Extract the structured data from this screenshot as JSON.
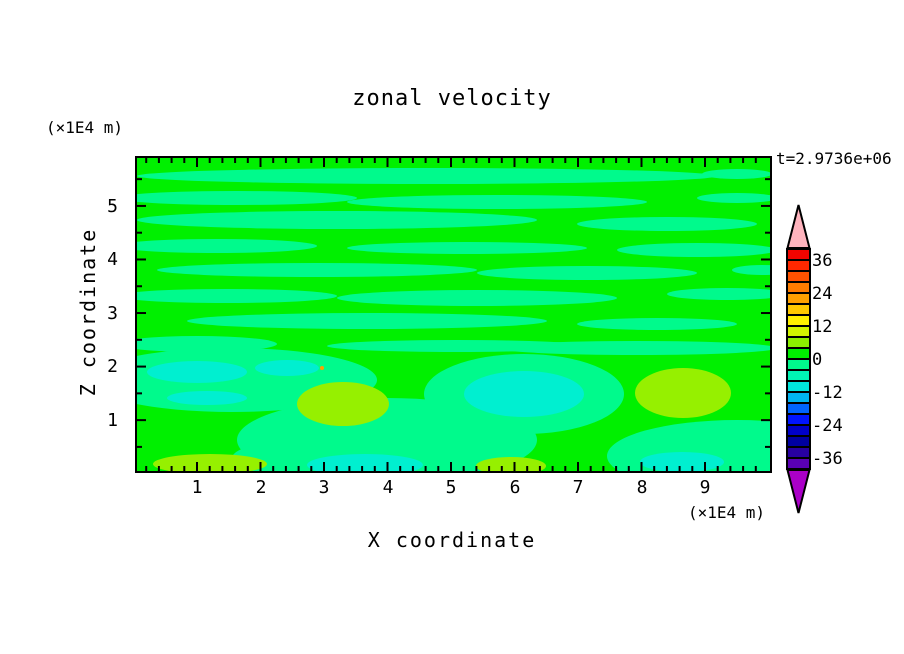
{
  "title": "zonal velocity",
  "timestamp": "t=2.9736e+06",
  "axes": {
    "x": {
      "label": "X coordinate",
      "units": "(×1E4 m)",
      "tick_labels": [
        "1",
        "2",
        "3",
        "4",
        "5",
        "6",
        "7",
        "8",
        "9"
      ],
      "major_ticks": [
        1,
        2,
        3,
        4,
        5,
        6,
        7,
        8,
        9
      ],
      "minor_step": 0.2,
      "range": [
        0,
        10
      ]
    },
    "y": {
      "label": "Z coordinate",
      "units": "(×1E4 m)",
      "tick_labels": [
        "5",
        "4",
        "3",
        "2",
        "1"
      ],
      "major_ticks": [
        1,
        2,
        3,
        4,
        5
      ],
      "minor_step": 0.5,
      "range": [
        0,
        5.9
      ]
    }
  },
  "colorbar": {
    "labels": [
      "36",
      "24",
      "12",
      "0",
      "-12",
      "-24",
      "-36"
    ],
    "range": [
      -40,
      40
    ],
    "level_step": 4,
    "cells_top_to_bottom": [
      "#F20400",
      "#FF2800",
      "#FF5200",
      "#FF7C00",
      "#FFA000",
      "#FFC800",
      "#FFF000",
      "#D2F500",
      "#8CF000",
      "#00F000",
      "#00FA8C",
      "#00F5B4",
      "#00E6DC",
      "#00B4F0",
      "#0064FF",
      "#0014FF",
      "#0000C8",
      "#0000A0",
      "#2800A0",
      "#5A00B4"
    ],
    "top_cap_color": "#FFB4BE",
    "bottom_cap_color": "#AA00C8"
  },
  "palette": {
    "green": "#00F000",
    "spring_green": "#00FA8C",
    "cyan": "#00EFD0",
    "chartreuse": "#96F000",
    "orange_speck": "#FFA000",
    "axis_color": "#000000",
    "background": "#FFFFFF"
  },
  "chart_data": {
    "type": "heatmap",
    "title": "zonal velocity",
    "xlabel": "X coordinate",
    "ylabel": "Z coordinate",
    "x_units": "(×1E4 m)",
    "y_units": "(×1E4 m)",
    "xlim": [
      0,
      10
    ],
    "ylim": [
      0,
      5.9
    ],
    "time_annotation": "t=2.9736e+06",
    "colorbar_tick_values": [
      36,
      24,
      12,
      0,
      -12,
      -24,
      -36
    ],
    "contour_interval": 4,
    "value_range_shown_in_field": [
      -12,
      8
    ],
    "field_summary": [
      "Upper half (z>2): alternating wavy horizontal streaks of green (0 to 4) and spring green (-4 to 0)",
      "Left z~1.5-2.2: spring-green region with cyan (-8 to -4) patches near x 0.3-2.5",
      "Chartreuse (+4 to +8) blob near x 2.7-4.0, z 0.9-1.7",
      "Cyan blob inside spring green near x 5.2-7.1, z 1.0-1.9",
      "Chartreuse blob near x 7.9-9.4, z 1.0-1.95",
      "Bottom edge: chartreuse band x 0.3-2.1, cyan patch x 2.7-4.6, chartreuse band x 5.4-6.5, cyan patch x 8-9.3 in spring-green corner",
      "Tiny orange speck near x 2.9, z 1.9"
    ],
    "legend_position": "right vertical colorbar with arrow caps (pink top, magenta bottom)"
  }
}
